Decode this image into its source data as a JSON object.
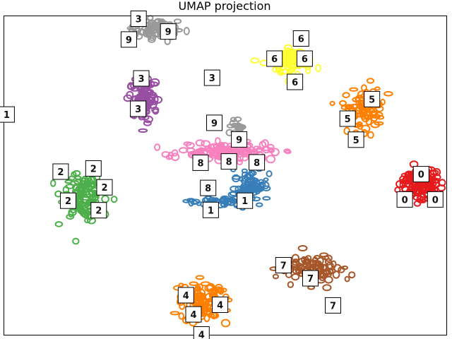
{
  "chart_data": {
    "type": "scatter",
    "title": "UMAP projection",
    "xlabel": "",
    "ylabel": "",
    "xlim": [
      0,
      100
    ],
    "ylim": [
      0,
      100
    ],
    "grid": false,
    "axes_visible": false,
    "legend": "none",
    "series": [
      {
        "label": "0",
        "color": "#e41a1c",
        "clusters": [
          {
            "cx": 94.2,
            "cy": 47.4,
            "sx": 3.2,
            "sy": 3.2,
            "n": 110
          }
        ]
      },
      {
        "label": "1",
        "color": "#377eb8",
        "clusters": [
          {
            "cx": 56.0,
            "cy": 46.0,
            "sx": 2.6,
            "sy": 3.4,
            "n": 80
          },
          {
            "cx": 48.0,
            "cy": 41.8,
            "sx": 4.2,
            "sy": 0.8,
            "n": 40
          },
          {
            "cx": 0.7,
            "cy": 68.8,
            "sx": 0.4,
            "sy": 0.8,
            "n": 10
          }
        ]
      },
      {
        "label": "2",
        "color": "#4daf4a",
        "clusters": [
          {
            "cx": 17.6,
            "cy": 43.8,
            "sx": 3.0,
            "sy": 4.8,
            "n": 120
          }
        ]
      },
      {
        "label": "3",
        "color": "#984ea3",
        "clusters": [
          {
            "cx": 31.5,
            "cy": 74.0,
            "sx": 2.2,
            "sy": 4.6,
            "n": 100
          }
        ]
      },
      {
        "label": "4",
        "color": "#ff7f00",
        "clusters": [
          {
            "cx": 45.0,
            "cy": 10.5,
            "sx": 3.4,
            "sy": 4.2,
            "n": 110
          }
        ]
      },
      {
        "label": "5",
        "color": "#ff7f00",
        "clusters": [
          {
            "cx": 81.0,
            "cy": 71.0,
            "sx": 3.0,
            "sy": 5.0,
            "n": 90
          }
        ]
      },
      {
        "label": "6",
        "color": "#ffff33",
        "clusters": [
          {
            "cx": 65.2,
            "cy": 85.6,
            "sx": 3.0,
            "sy": 2.6,
            "n": 90
          }
        ]
      },
      {
        "label": "7",
        "color": "#a65628",
        "clusters": [
          {
            "cx": 69.5,
            "cy": 20.5,
            "sx": 4.5,
            "sy": 3.2,
            "n": 90
          }
        ]
      },
      {
        "label": "8",
        "color": "#f781bf",
        "clusters": [
          {
            "cx": 50.5,
            "cy": 57.2,
            "sx": 7.0,
            "sy": 1.6,
            "n": 130
          }
        ]
      },
      {
        "label": "9",
        "color": "#999999",
        "clusters": [
          {
            "cx": 34.5,
            "cy": 95.5,
            "sx": 3.2,
            "sy": 1.8,
            "n": 100
          },
          {
            "cx": 53.0,
            "cy": 65.5,
            "sx": 1.6,
            "sy": 1.2,
            "n": 15
          }
        ]
      }
    ],
    "thumbnails": [
      {
        "label": "3",
        "x": 30.5,
        "y": 99.0
      },
      {
        "label": "9",
        "x": 37.2,
        "y": 95.0
      },
      {
        "label": "9",
        "x": 28.3,
        "y": 92.5
      },
      {
        "label": "6",
        "x": 67.2,
        "y": 92.8
      },
      {
        "label": "6",
        "x": 61.2,
        "y": 86.5
      },
      {
        "label": "6",
        "x": 68.0,
        "y": 86.5
      },
      {
        "label": "6",
        "x": 65.8,
        "y": 79.2
      },
      {
        "label": "3",
        "x": 31.1,
        "y": 80.3
      },
      {
        "label": "3",
        "x": 47.1,
        "y": 80.5
      },
      {
        "label": "3",
        "x": 30.4,
        "y": 70.8
      },
      {
        "label": "5",
        "x": 83.2,
        "y": 73.8
      },
      {
        "label": "5",
        "x": 77.7,
        "y": 67.7
      },
      {
        "label": "5",
        "x": 79.6,
        "y": 61.1
      },
      {
        "label": "1",
        "x": 0.7,
        "y": 69.0
      },
      {
        "label": "9",
        "x": 47.6,
        "y": 66.4
      },
      {
        "label": "9",
        "x": 53.2,
        "y": 61.2
      },
      {
        "label": "8",
        "x": 44.5,
        "y": 53.9
      },
      {
        "label": "8",
        "x": 50.9,
        "y": 54.3
      },
      {
        "label": "8",
        "x": 57.2,
        "y": 54.0
      },
      {
        "label": "2",
        "x": 20.3,
        "y": 52.1
      },
      {
        "label": "2",
        "x": 12.9,
        "y": 51.1
      },
      {
        "label": "2",
        "x": 22.8,
        "y": 46.2
      },
      {
        "label": "2",
        "x": 14.6,
        "y": 42.0
      },
      {
        "label": "2",
        "x": 21.5,
        "y": 39.0
      },
      {
        "label": "8",
        "x": 46.2,
        "y": 46.0
      },
      {
        "label": "1",
        "x": 54.5,
        "y": 42.0
      },
      {
        "label": "1",
        "x": 46.8,
        "y": 39.1
      },
      {
        "label": "0",
        "x": 94.3,
        "y": 50.3
      },
      {
        "label": "0",
        "x": 90.6,
        "y": 42.4
      },
      {
        "label": "0",
        "x": 97.5,
        "y": 42.4
      },
      {
        "label": "7",
        "x": 63.2,
        "y": 21.8
      },
      {
        "label": "7",
        "x": 69.3,
        "y": 17.7
      },
      {
        "label": "7",
        "x": 74.4,
        "y": 9.2
      },
      {
        "label": "4",
        "x": 41.2,
        "y": 12.4
      },
      {
        "label": "4",
        "x": 48.9,
        "y": 9.4
      },
      {
        "label": "4",
        "x": 42.9,
        "y": 6.4
      },
      {
        "label": "4",
        "x": 44.7,
        "y": 0.1
      }
    ]
  }
}
